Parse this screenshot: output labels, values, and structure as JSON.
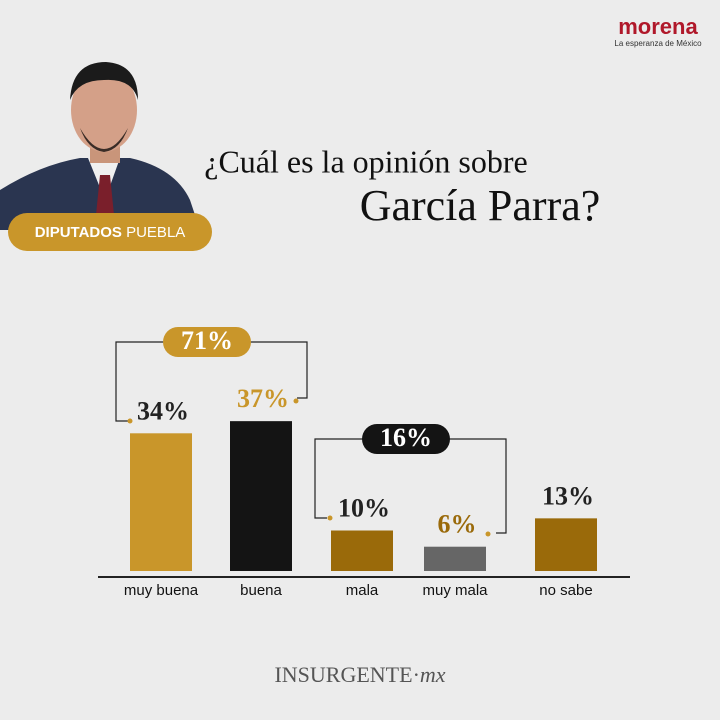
{
  "brand": {
    "name": "morena",
    "tagline": "La esperanza de México"
  },
  "badge": {
    "bold": "DIPUTADOS",
    "normal": "PUEBLA"
  },
  "footer": {
    "main": "INSURGENTE",
    "suffix": "mx"
  },
  "chart_data": {
    "type": "bar",
    "title": "¿Cuál es la opinión sobre",
    "subtitle": "García Parra?",
    "categories": [
      "muy buena",
      "buena",
      "mala",
      "muy mala",
      "no sabe"
    ],
    "values": [
      34,
      37,
      10,
      6,
      13
    ],
    "value_labels": [
      "34%",
      "37%",
      "10%",
      "6%",
      "13%"
    ],
    "colors": [
      "#c9962a",
      "#141414",
      "#9a6a0a",
      "#666666",
      "#9a6a0a"
    ],
    "annotations": [
      {
        "value": 71,
        "label": "71%"
      },
      {
        "value": 16,
        "label": "16%"
      }
    ]
  }
}
